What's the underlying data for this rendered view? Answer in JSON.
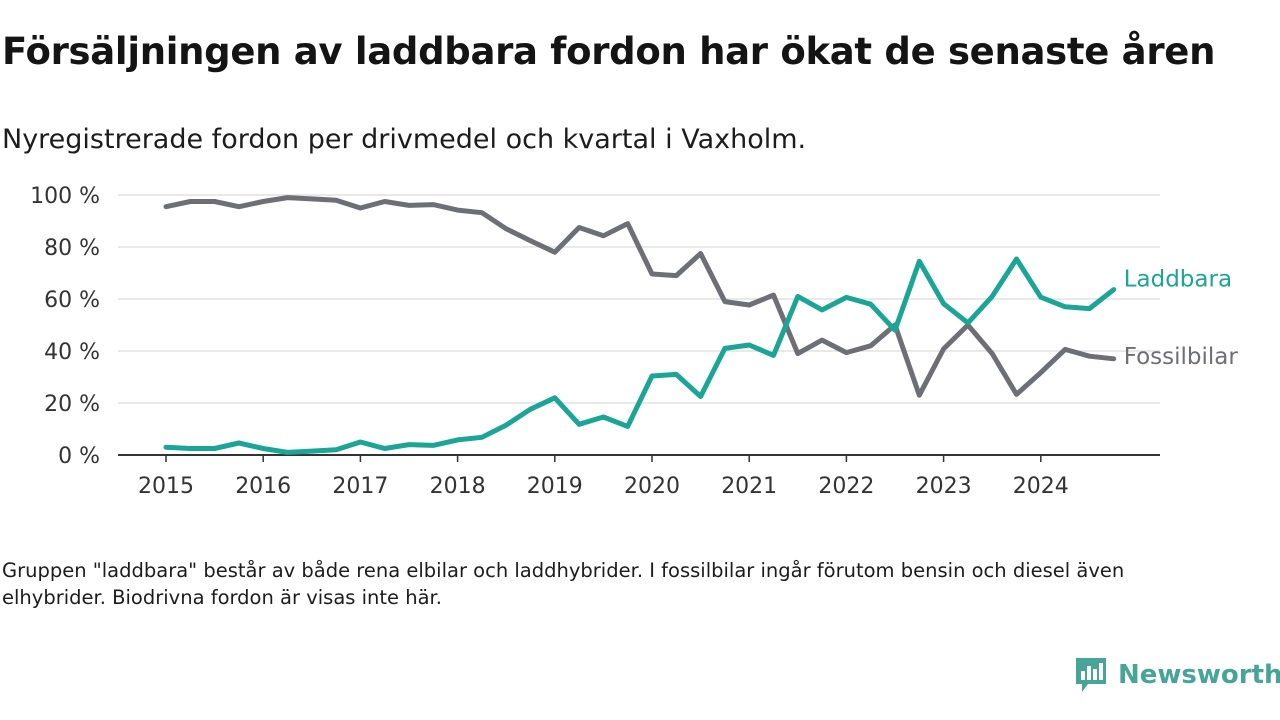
{
  "title": "Försäljningen av laddbara fordon har ökat de senaste åren",
  "subtitle": "Nyregistrerade fordon per drivmedel och kvartal i Vaxholm.",
  "note": "Gruppen \"laddbara\" består av både rena elbilar och laddhybrider. I fossilbilar ingår förutom bensin och diesel även elhybrider. Biodrivna fordon är visas inte här.",
  "brand": {
    "name": "Newsworthy",
    "icon": "bar-chart-logo-icon",
    "color": "#46a596"
  },
  "chart_data": {
    "type": "line",
    "title": "Nyregistrerade fordon per drivmedel och kvartal i Vaxholm.",
    "xlabel": "",
    "ylabel": "",
    "ylim": [
      0,
      100
    ],
    "xlim": [
      2015,
      2025
    ],
    "y_ticks": [
      0,
      20,
      40,
      60,
      80,
      100
    ],
    "y_tick_labels": [
      "0 %",
      "20 %",
      "40 %",
      "60 %",
      "80 %",
      "100 %"
    ],
    "x_ticks": [
      2015,
      2016,
      2017,
      2018,
      2019,
      2020,
      2021,
      2022,
      2023,
      2024
    ],
    "x_tick_labels": [
      "2015",
      "2016",
      "2017",
      "2018",
      "2019",
      "2020",
      "2021",
      "2022",
      "2023",
      "2024"
    ],
    "grid": true,
    "x": [
      2015.0,
      2015.25,
      2015.5,
      2015.75,
      2016.0,
      2016.25,
      2016.5,
      2016.75,
      2017.0,
      2017.25,
      2017.5,
      2017.75,
      2018.0,
      2018.25,
      2018.5,
      2018.75,
      2019.0,
      2019.25,
      2019.5,
      2019.75,
      2020.0,
      2020.25,
      2020.5,
      2020.75,
      2021.0,
      2021.25,
      2021.5,
      2021.75,
      2022.0,
      2022.25,
      2022.5,
      2022.75,
      2023.0,
      2023.25,
      2023.5,
      2023.75,
      2024.0,
      2024.25,
      2024.5,
      2024.75
    ],
    "series": [
      {
        "name": "Fossilbilar",
        "label": "Fossilbilar",
        "color": "#6e6e76",
        "values": [
          95.5,
          97.5,
          97.5,
          95.5,
          97.5,
          99,
          98.5,
          98,
          95,
          97.5,
          96,
          96.3,
          94.2,
          93.2,
          87,
          82.4,
          78,
          87.5,
          84.3,
          89,
          69.6,
          69,
          77.5,
          59,
          57.7,
          61.5,
          39,
          44.2,
          39.4,
          42,
          50,
          23,
          40.8,
          50,
          39,
          23.3,
          31.7,
          40.6,
          38,
          37
        ]
      },
      {
        "name": "Laddbara",
        "label": "Laddbara",
        "color": "#1aa597",
        "values": [
          3,
          2.5,
          2.5,
          4.6,
          2.5,
          1,
          1.5,
          2,
          5,
          2.5,
          4,
          3.7,
          5.8,
          6.8,
          11.5,
          17.6,
          22,
          11.8,
          14.6,
          11,
          30.4,
          31,
          22.5,
          41,
          42.3,
          38.3,
          61,
          55.8,
          60.6,
          58,
          48,
          74.5,
          58.2,
          50.8,
          61,
          75.4,
          60.7,
          57,
          56.3,
          63.6
        ]
      }
    ],
    "legend": "inline-right"
  }
}
